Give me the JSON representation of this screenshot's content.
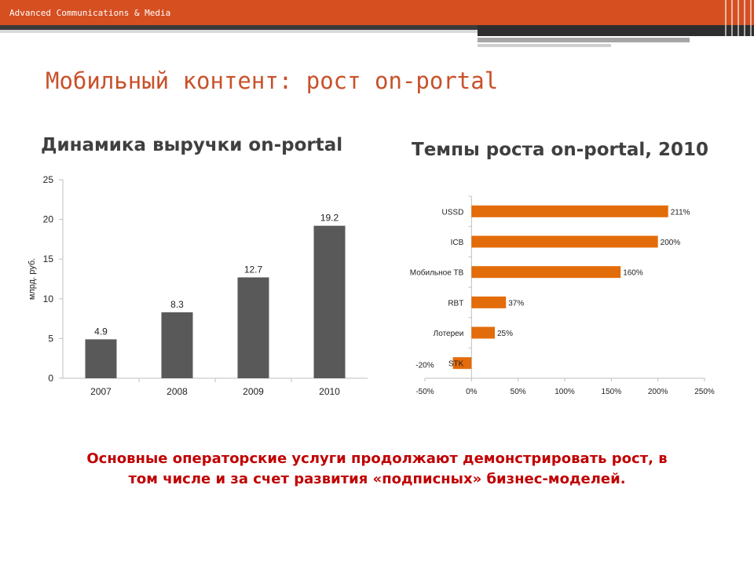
{
  "brand": "Advanced Communications & Media",
  "slide_title": "Мобильный контент: рост on-portal",
  "colors": {
    "accent": "#d54f21",
    "bar_grey": "#595959",
    "bar_orange": "#e36c0a",
    "conclusion": "#c00000"
  },
  "chart_data": [
    {
      "type": "bar",
      "title": "Динамика выручки on-portal",
      "categories": [
        "2007",
        "2008",
        "2009",
        "2010"
      ],
      "values": [
        4.9,
        8.3,
        12.7,
        19.2
      ],
      "value_labels": [
        "4.9",
        "8.3",
        "12.7",
        "19.2"
      ],
      "ylabel": "млрд. руб.",
      "xlabel": "",
      "ylim": [
        0,
        25
      ],
      "yticks": [
        0,
        5,
        10,
        15,
        20,
        25
      ],
      "grid": false,
      "legend": "none"
    },
    {
      "type": "bar",
      "orientation": "horizontal",
      "title": "Темпы роста on-portal, 2010",
      "categories": [
        "USSD",
        "ICB",
        "Мобильное ТВ",
        "RBT",
        "Лотереи",
        "STK"
      ],
      "values": [
        211,
        200,
        160,
        37,
        25,
        -20
      ],
      "value_labels": [
        "211%",
        "200%",
        "160%",
        "37%",
        "25%",
        "-20%"
      ],
      "xlim": [
        -50,
        250
      ],
      "xticks": [
        -50,
        0,
        50,
        100,
        150,
        200,
        250
      ],
      "xtick_labels": [
        "-50%",
        "0%",
        "50%",
        "100%",
        "150%",
        "200%",
        "250%"
      ],
      "grid": false,
      "legend": "none"
    }
  ],
  "conclusion": {
    "line1": "Основные операторские услуги продолжают демонстрировать рост, в",
    "line2": "том числе и за счет развития «подписных» бизнес-моделей."
  }
}
